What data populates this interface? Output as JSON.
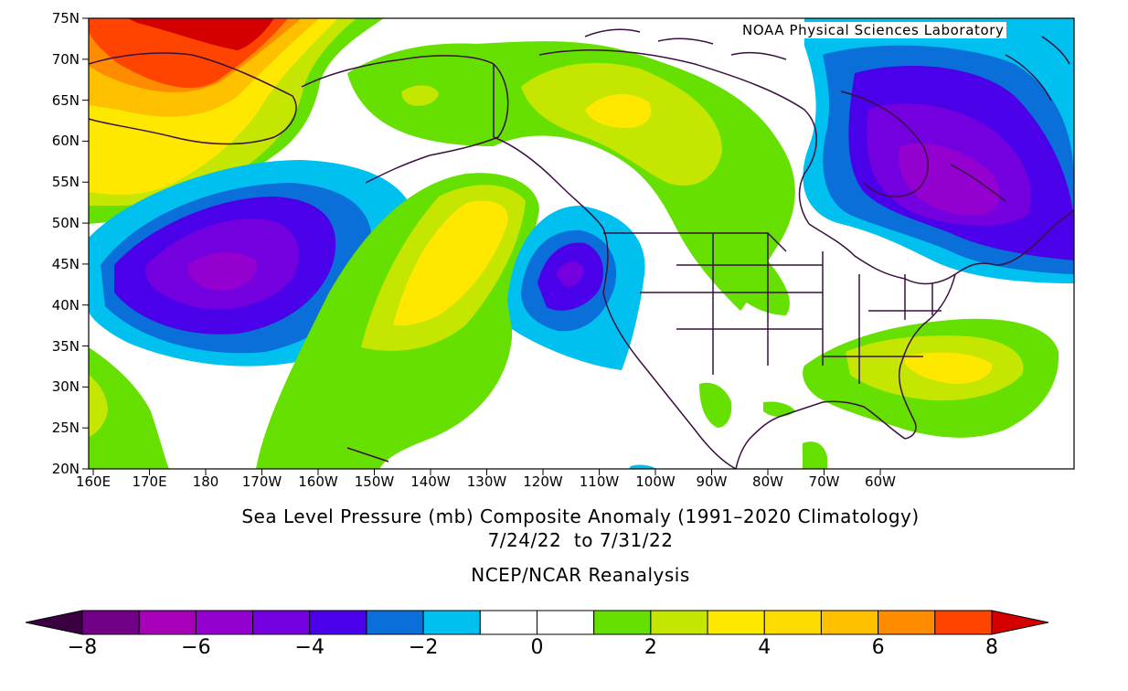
{
  "credit": "NOAA Physical Sciences Laboratory",
  "title": {
    "line1": "Sea Level Pressure (mb) Composite Anomaly (1991–2020 Climatology)",
    "line2": "7/24/22  to 7/31/22",
    "line3": "NCEP/NCAR Reanalysis"
  },
  "axes": {
    "lat_labels": [
      "75N",
      "70N",
      "65N",
      "60N",
      "55N",
      "50N",
      "45N",
      "40N",
      "35N",
      "30N",
      "25N",
      "20N"
    ],
    "lon_labels": [
      "160E",
      "170E",
      "180",
      "170W",
      "160W",
      "150W",
      "140W",
      "130W",
      "120W",
      "110W",
      "100W",
      "90W",
      "80W",
      "70W",
      "60W"
    ]
  },
  "colorbar": {
    "labels": [
      "−8",
      "−6",
      "−4",
      "−2",
      "0",
      "2",
      "4",
      "6",
      "8"
    ],
    "colors": [
      "#720086",
      "#a800b8",
      "#9300d0",
      "#7400e0",
      "#4a00e8",
      "#0a6fd8",
      "#00c0f0",
      "#ffffff",
      "#ffffff",
      "#66e000",
      "#c4e600",
      "#ffe800",
      "#ffdc00",
      "#ffc000",
      "#ff8c00",
      "#ff4400"
    ],
    "under_color": "#3a0040",
    "over_color": "#d40000"
  }
}
